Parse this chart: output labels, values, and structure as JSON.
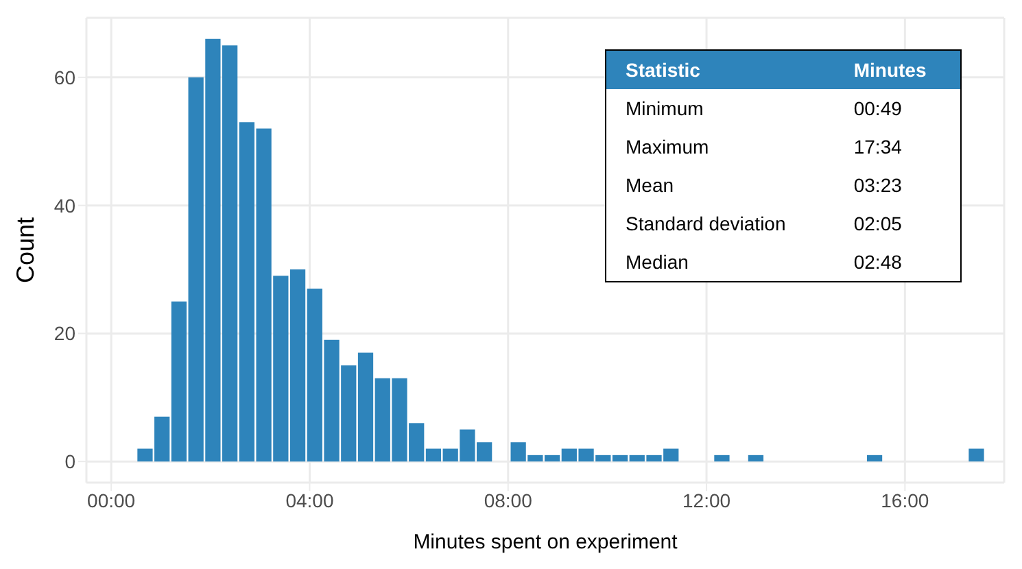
{
  "chart_data": {
    "type": "histogram",
    "xlabel": "Minutes spent on experiment",
    "ylabel": "Count",
    "color": "#2e84bb",
    "bins": [
      0.5,
      0.842,
      1.184,
      1.526,
      1.868,
      2.21,
      2.552,
      2.894,
      3.236,
      3.578,
      3.92,
      4.262,
      4.604,
      4.946,
      5.288,
      5.63,
      5.972,
      6.314,
      6.656,
      6.998,
      7.34,
      7.682,
      8.024,
      8.366,
      8.708,
      9.05,
      9.392,
      9.734,
      10.076,
      10.418,
      10.76,
      11.102,
      11.444,
      11.786,
      12.128,
      12.47,
      12.812,
      13.154,
      13.496,
      13.838,
      14.18,
      14.522,
      14.864,
      15.206,
      15.548,
      15.89,
      16.232,
      16.574,
      16.916,
      17.258,
      17.6
    ],
    "values": [
      2,
      7,
      25,
      60,
      66,
      65,
      53,
      52,
      29,
      30,
      27,
      19,
      15,
      17,
      13,
      13,
      6,
      2,
      2,
      5,
      3,
      0,
      3,
      1,
      1,
      2,
      2,
      1,
      1,
      1,
      1,
      2,
      0,
      0,
      1,
      0,
      1,
      0,
      0,
      0,
      0,
      0,
      0,
      1,
      0,
      0,
      0,
      0,
      0,
      2
    ],
    "xlim": [
      -0.5,
      18.0
    ],
    "xticks": [
      {
        "value": 0,
        "label": "00:00"
      },
      {
        "value": 4,
        "label": "04:00"
      },
      {
        "value": 8,
        "label": "08:00"
      },
      {
        "value": 12,
        "label": "12:00"
      },
      {
        "value": 16,
        "label": "16:00"
      }
    ],
    "ylim": [
      -3.3,
      69.3
    ],
    "yticks": [
      0,
      20,
      40,
      60
    ],
    "grid": true,
    "annotations": [
      "Statistic",
      "Minutes",
      "Minimum",
      "00:49",
      "Maximum",
      "17:34",
      "Mean",
      "03:23",
      "Standard deviation",
      "02:05",
      "Median",
      "02:48"
    ]
  }
}
